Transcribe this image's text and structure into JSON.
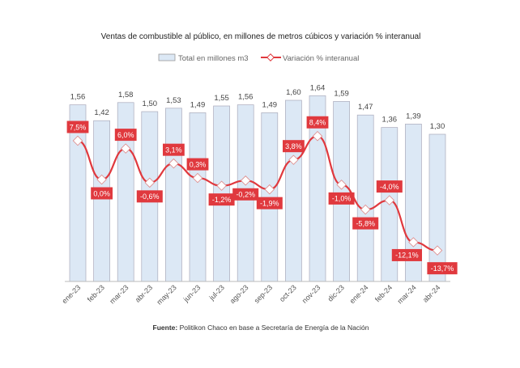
{
  "chart_data": {
    "type": "bar+line",
    "title": "Ventas de combustible al público, en millones de metros cúbicos y variación % interanual",
    "categories": [
      "ene-23",
      "feb-23",
      "mar-23",
      "abr-23",
      "may-23",
      "jun-23",
      "jul-23",
      "ago-23",
      "sep-23",
      "oct-23",
      "nov-23",
      "dic-23",
      "ene-24",
      "feb-24",
      "mar-24",
      "abr-24"
    ],
    "series": [
      {
        "name": "Total en millones m3",
        "type": "bar",
        "values": [
          1.56,
          1.42,
          1.58,
          1.5,
          1.53,
          1.49,
          1.55,
          1.56,
          1.49,
          1.6,
          1.64,
          1.59,
          1.47,
          1.36,
          1.39,
          1.3
        ],
        "labels": [
          "1,56",
          "1,42",
          "1,58",
          "1,50",
          "1,53",
          "1,49",
          "1,55",
          "1,56",
          "1,49",
          "1,60",
          "1,64",
          "1,59",
          "1,47",
          "1,36",
          "1,39",
          "1,30"
        ],
        "color": "#dce8f5"
      },
      {
        "name": "Variación % interanual",
        "type": "line",
        "values": [
          7.5,
          0.0,
          6.0,
          -0.6,
          3.1,
          0.3,
          -1.2,
          -0.2,
          -1.9,
          3.8,
          8.4,
          -1.0,
          -5.8,
          -4.0,
          -12.1,
          -13.7
        ],
        "labels": [
          "7,5%",
          "0,0%",
          "6,0%",
          "-0,6%",
          "3,1%",
          "0,3%",
          "-1,2%",
          "-0,2%",
          "-1,9%",
          "3,8%",
          "8,4%",
          "-1,0%",
          "-5,8%",
          "-4,0%",
          "-12,1%",
          "-13,7%"
        ],
        "color": "#e0393e"
      }
    ],
    "legend": "top",
    "grid": false,
    "source_label": "Fuente:",
    "source_text": " Politikon Chaco en base a Secretaría de Energía de la Nación"
  }
}
